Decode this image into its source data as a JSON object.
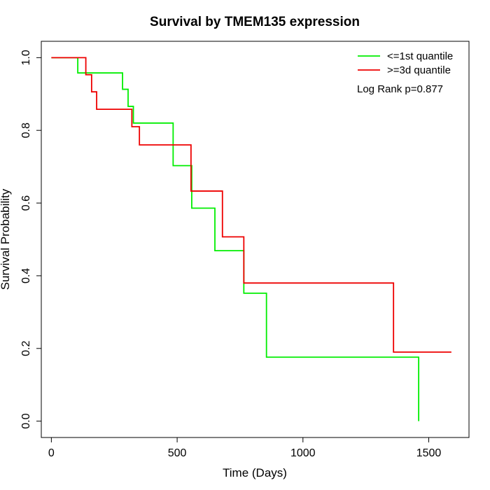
{
  "chart_data": {
    "type": "line",
    "title": "Survival by TMEM135 expression",
    "xlabel": "Time (Days)",
    "ylabel": "Survival Probability",
    "xlim": [
      -40,
      1660
    ],
    "ylim": [
      -0.045,
      1.045
    ],
    "x_ticks": [
      0,
      500,
      1000,
      1500
    ],
    "x_tick_labels": [
      "0",
      "500",
      "1000",
      "1500"
    ],
    "y_ticks": [
      0.0,
      0.2,
      0.4,
      0.6,
      0.8,
      1.0
    ],
    "y_tick_labels": [
      "0.0",
      "0.2",
      "0.4",
      "0.6",
      "0.8",
      "1.0"
    ],
    "grid": false,
    "legend_position": "top-right",
    "annotation": "Log Rank p=0.877",
    "series": [
      {
        "name": "<=1st quantile",
        "color": "#00ee00",
        "step_points": [
          [
            0,
            1.0
          ],
          [
            105,
            0.958
          ],
          [
            283,
            0.913
          ],
          [
            305,
            0.866
          ],
          [
            326,
            0.82
          ],
          [
            484,
            0.703
          ],
          [
            558,
            0.586
          ],
          [
            650,
            0.469
          ],
          [
            765,
            0.352
          ],
          [
            855,
            0.176
          ],
          [
            1460,
            0.0
          ]
        ]
      },
      {
        "name": ">=3d quantile",
        "color": "#ee0000",
        "step_points": [
          [
            0,
            1.0
          ],
          [
            137,
            0.953
          ],
          [
            160,
            0.906
          ],
          [
            180,
            0.858
          ],
          [
            320,
            0.81
          ],
          [
            350,
            0.76
          ],
          [
            555,
            0.633
          ],
          [
            680,
            0.507
          ],
          [
            765,
            0.38
          ],
          [
            1360,
            0.19
          ]
        ],
        "end_x": 1590
      }
    ]
  }
}
